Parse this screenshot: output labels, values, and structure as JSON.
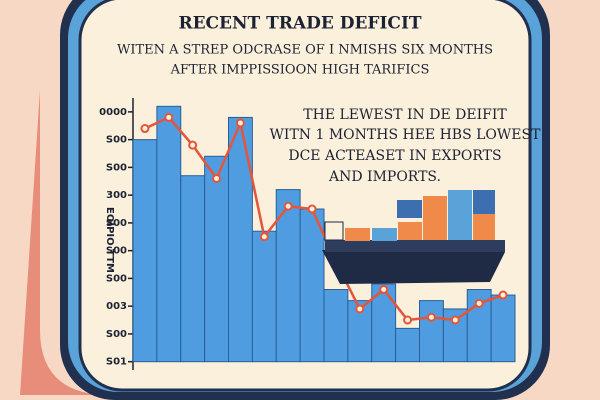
{
  "chart_data": {
    "type": "bar",
    "title": "RECENT TRADE DEFICIT",
    "subtitle": [
      "WITEN A STREP ODCRASE OF I NMISHS SIX MONTHS",
      "AFTER IMPPISSIOON HIGH TARIFICS"
    ],
    "annotation": [
      "THE LEWEST IN DE DEIFIT",
      "WITN 1 MONTHS HEE HBS LOWEST",
      "DCE ACTEASET IN EXPORTS",
      "AND  IMPORTS."
    ],
    "y_label": "EOIPIO TTM",
    "categories": [
      null,
      null,
      null,
      null,
      null,
      null,
      null,
      null,
      null,
      null,
      null,
      null,
      null,
      null,
      null,
      null
    ],
    "series": [
      {
        "type": "bar",
        "color": "#4f9de0",
        "values": [
          8.0,
          9.2,
          6.7,
          7.4,
          8.8,
          4.7,
          6.2,
          5.5,
          2.6,
          2.2,
          2.8,
          1.2,
          2.2,
          1.9,
          2.6,
          2.4
        ]
      },
      {
        "type": "line",
        "color": "#e4553a",
        "values": [
          8.4,
          8.8,
          7.8,
          6.6,
          8.6,
          4.5,
          5.6,
          5.5,
          3.6,
          1.9,
          2.6,
          1.5,
          1.6,
          1.5,
          2.1,
          2.4
        ]
      }
    ],
    "ylim": [
      -0.3,
      9.5
    ],
    "yticks": [
      {
        "value": 9,
        "label": "0000"
      },
      {
        "value": 8,
        "label": "S00"
      },
      {
        "value": 7,
        "label": "S00"
      },
      {
        "value": 6,
        "label": "300"
      },
      {
        "value": 5,
        "label": "S00"
      },
      {
        "value": 4,
        "label": "S00"
      },
      {
        "value": 3,
        "label": "S00"
      },
      {
        "value": 2,
        "label": "003"
      },
      {
        "value": 1,
        "label": "S00"
      },
      {
        "value": 0,
        "label": "S01"
      }
    ]
  }
}
